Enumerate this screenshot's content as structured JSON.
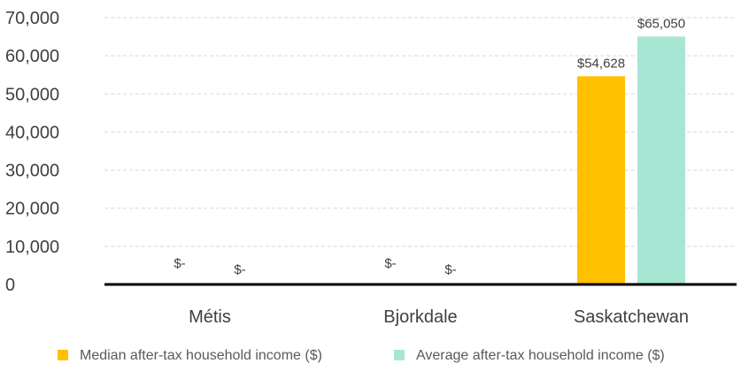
{
  "chart_data": {
    "type": "bar",
    "categories": [
      "Métis",
      "Bjorkdale",
      "Saskatchewan"
    ],
    "series": [
      {
        "name": "Median after-tax household income ($)",
        "color": "#FFC000",
        "values": [
          0,
          0,
          54628
        ],
        "labels": [
          "$-",
          "$-",
          "$54,628"
        ]
      },
      {
        "name": "Average after-tax household income ($)",
        "color": "#A8E6D4",
        "values": [
          0,
          0,
          65050
        ],
        "labels": [
          "$-",
          "$-",
          "$65,050"
        ]
      }
    ],
    "ylim": [
      0,
      70000
    ],
    "yticks": [
      "0",
      "10,000",
      "20,000",
      "30,000",
      "40,000",
      "50,000",
      "60,000",
      "70,000"
    ],
    "grid": true,
    "legend_position": "bottom"
  }
}
